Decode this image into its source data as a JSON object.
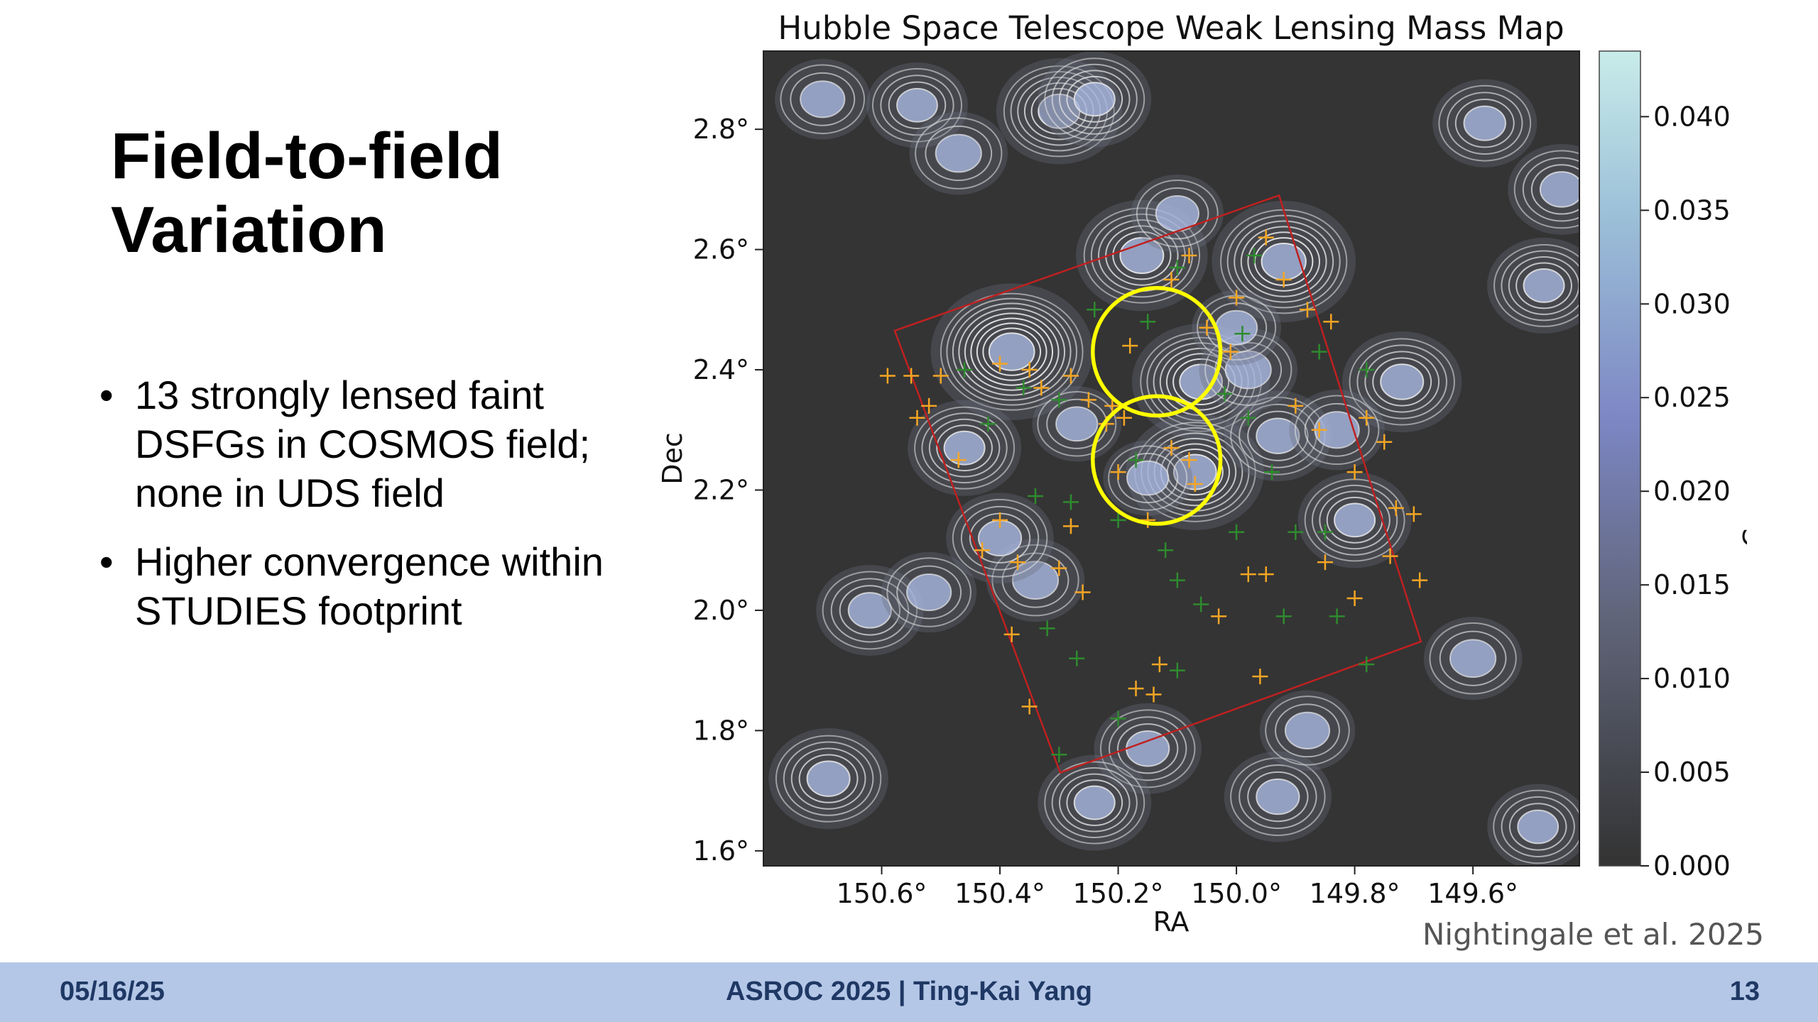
{
  "slide": {
    "title_line1": "Field-to-field",
    "title_line2": "Variation",
    "bullet1_lines": [
      "13 strongly lensed faint",
      "DSFGs in COSMOS field;",
      "none in UDS field"
    ],
    "bullet2_lines": [
      "Higher convergence within",
      "STUDIES footprint"
    ]
  },
  "figure": {
    "credit": "Nightingale et al. 2025"
  },
  "footer": {
    "date": "05/16/25",
    "center": "ASROC 2025 | Ting-Kai Yang",
    "page": "13"
  },
  "colors": {
    "map_background": "#343434",
    "contour": "#e6e6e6",
    "footprint": "#c02020",
    "highlight_circle": "#ffff00",
    "marker_orange": "#f5a623",
    "marker_green": "#2e8b2e",
    "footer_bar": "#b4c7e7",
    "footer_text": "#1f3864"
  },
  "chart_data": {
    "type": "heatmap",
    "title": "Hubble Space Telescope Weak Lensing Mass Map",
    "xlabel": "RA",
    "ylabel": "Dec",
    "colorbar_label": "Convergence",
    "xlim": [
      150.8,
      149.42
    ],
    "ylim": [
      1.575,
      2.93
    ],
    "x_ticks": [
      150.6,
      150.4,
      150.2,
      150.0,
      149.8,
      149.6
    ],
    "x_tick_labels": [
      "150.6°",
      "150.4°",
      "150.2°",
      "150.0°",
      "149.8°",
      "149.6°"
    ],
    "y_ticks": [
      2.8,
      2.6,
      2.4,
      2.2,
      2.0,
      1.8,
      1.6
    ],
    "y_tick_labels": [
      "2.8°",
      "2.6°",
      "2.4°",
      "2.2°",
      "2.0°",
      "1.8°",
      "1.6°"
    ],
    "colorbar_range": [
      0.0,
      0.0435
    ],
    "colorbar_ticks": [
      0.04,
      0.035,
      0.03,
      0.025,
      0.02,
      0.015,
      0.01,
      0.005,
      0.0
    ],
    "colorbar_tick_labels": [
      "0.040",
      "0.035",
      "0.030",
      "0.025",
      "0.020",
      "0.015",
      "0.010",
      "0.005",
      "0.000"
    ],
    "peaks": [
      {
        "ra": 150.38,
        "dec": 2.43,
        "k": 0.034
      },
      {
        "ra": 150.06,
        "dec": 2.38,
        "k": 0.026
      },
      {
        "ra": 150.07,
        "dec": 2.23,
        "k": 0.026
      },
      {
        "ra": 149.92,
        "dec": 2.58,
        "k": 0.028
      },
      {
        "ra": 150.16,
        "dec": 2.59,
        "k": 0.024
      },
      {
        "ra": 149.72,
        "dec": 2.38,
        "k": 0.02
      },
      {
        "ra": 150.3,
        "dec": 2.83,
        "k": 0.022
      },
      {
        "ra": 150.24,
        "dec": 2.85,
        "k": 0.018
      },
      {
        "ra": 150.46,
        "dec": 2.27,
        "k": 0.018
      },
      {
        "ra": 150.62,
        "dec": 2.0,
        "k": 0.016
      },
      {
        "ra": 150.52,
        "dec": 2.03,
        "k": 0.012
      },
      {
        "ra": 149.93,
        "dec": 2.29,
        "k": 0.016
      },
      {
        "ra": 149.83,
        "dec": 2.3,
        "k": 0.012
      },
      {
        "ra": 149.8,
        "dec": 2.15,
        "k": 0.018
      },
      {
        "ra": 149.48,
        "dec": 2.54,
        "k": 0.018
      },
      {
        "ra": 149.45,
        "dec": 2.7,
        "k": 0.016
      },
      {
        "ra": 149.58,
        "dec": 2.81,
        "k": 0.015
      },
      {
        "ra": 150.1,
        "dec": 2.66,
        "k": 0.011
      },
      {
        "ra": 149.98,
        "dec": 2.4,
        "k": 0.013
      },
      {
        "ra": 150.54,
        "dec": 2.84,
        "k": 0.014
      },
      {
        "ra": 150.7,
        "dec": 2.85,
        "k": 0.012
      },
      {
        "ra": 150.34,
        "dec": 2.05,
        "k": 0.013
      },
      {
        "ra": 150.4,
        "dec": 2.12,
        "k": 0.016
      },
      {
        "ra": 150.15,
        "dec": 1.77,
        "k": 0.016
      },
      {
        "ra": 150.24,
        "dec": 1.68,
        "k": 0.018
      },
      {
        "ra": 149.93,
        "dec": 1.69,
        "k": 0.016
      },
      {
        "ra": 150.69,
        "dec": 1.72,
        "k": 0.02
      },
      {
        "ra": 149.6,
        "dec": 1.92,
        "k": 0.013
      },
      {
        "ra": 149.49,
        "dec": 1.64,
        "k": 0.014
      },
      {
        "ra": 150.47,
        "dec": 2.76,
        "k": 0.013
      },
      {
        "ra": 150.15,
        "dec": 2.22,
        "k": 0.01
      },
      {
        "ra": 150.27,
        "dec": 2.31,
        "k": 0.01
      },
      {
        "ra": 149.88,
        "dec": 1.8,
        "k": 0.012
      },
      {
        "ra": 150.0,
        "dec": 2.47,
        "k": 0.01
      }
    ],
    "footprint_polygon": [
      {
        "ra": 150.578,
        "dec": 2.465
      },
      {
        "ra": 149.928,
        "dec": 2.69
      },
      {
        "ra": 149.688,
        "dec": 1.948
      },
      {
        "ra": 150.298,
        "dec": 1.73
      }
    ],
    "highlight_circles": [
      {
        "ra": 150.135,
        "dec": 2.43,
        "r_deg": 0.108
      },
      {
        "ra": 150.135,
        "dec": 2.25,
        "r_deg": 0.108
      }
    ],
    "markers_orange": [
      {
        "ra": 150.5,
        "dec": 2.39
      },
      {
        "ra": 150.4,
        "dec": 2.41
      },
      {
        "ra": 150.35,
        "dec": 2.4
      },
      {
        "ra": 150.33,
        "dec": 2.37
      },
      {
        "ra": 150.28,
        "dec": 2.39
      },
      {
        "ra": 150.25,
        "dec": 2.35
      },
      {
        "ra": 150.21,
        "dec": 2.34
      },
      {
        "ra": 150.18,
        "dec": 2.44
      },
      {
        "ra": 150.05,
        "dec": 2.47
      },
      {
        "ra": 150.01,
        "dec": 2.43
      },
      {
        "ra": 149.95,
        "dec": 2.62
      },
      {
        "ra": 150.08,
        "dec": 2.59
      },
      {
        "ra": 149.92,
        "dec": 2.55
      },
      {
        "ra": 149.84,
        "dec": 2.48
      },
      {
        "ra": 149.9,
        "dec": 2.34
      },
      {
        "ra": 149.78,
        "dec": 2.32
      },
      {
        "ra": 149.75,
        "dec": 2.28
      },
      {
        "ra": 149.8,
        "dec": 2.23
      },
      {
        "ra": 149.73,
        "dec": 2.17
      },
      {
        "ra": 149.7,
        "dec": 2.16
      },
      {
        "ra": 149.74,
        "dec": 2.09
      },
      {
        "ra": 149.69,
        "dec": 2.05
      },
      {
        "ra": 149.8,
        "dec": 2.02
      },
      {
        "ra": 149.85,
        "dec": 2.08
      },
      {
        "ra": 149.95,
        "dec": 2.06
      },
      {
        "ra": 149.98,
        "dec": 2.06
      },
      {
        "ra": 150.03,
        "dec": 1.99
      },
      {
        "ra": 149.96,
        "dec": 1.89
      },
      {
        "ra": 150.11,
        "dec": 2.27
      },
      {
        "ra": 150.08,
        "dec": 2.25
      },
      {
        "ra": 150.07,
        "dec": 2.21
      },
      {
        "ra": 150.15,
        "dec": 2.15
      },
      {
        "ra": 150.28,
        "dec": 2.14
      },
      {
        "ra": 150.3,
        "dec": 2.07
      },
      {
        "ra": 150.26,
        "dec": 2.03
      },
      {
        "ra": 150.37,
        "dec": 2.08
      },
      {
        "ra": 150.4,
        "dec": 2.15
      },
      {
        "ra": 150.43,
        "dec": 2.1
      },
      {
        "ra": 150.38,
        "dec": 1.96
      },
      {
        "ra": 150.13,
        "dec": 1.91
      },
      {
        "ra": 150.14,
        "dec": 1.86
      },
      {
        "ra": 150.17,
        "dec": 1.87
      },
      {
        "ra": 150.35,
        "dec": 1.84
      },
      {
        "ra": 150.47,
        "dec": 2.25
      },
      {
        "ra": 150.54,
        "dec": 2.32
      },
      {
        "ra": 150.59,
        "dec": 2.39
      },
      {
        "ra": 150.55,
        "dec": 2.39
      },
      {
        "ra": 150.52,
        "dec": 2.34
      },
      {
        "ra": 150.11,
        "dec": 2.55
      },
      {
        "ra": 150.0,
        "dec": 2.52
      },
      {
        "ra": 149.88,
        "dec": 2.5
      },
      {
        "ra": 150.22,
        "dec": 2.31
      },
      {
        "ra": 150.19,
        "dec": 2.32
      },
      {
        "ra": 149.86,
        "dec": 2.3
      },
      {
        "ra": 150.2,
        "dec": 2.23
      }
    ],
    "markers_green": [
      {
        "ra": 150.46,
        "dec": 2.4
      },
      {
        "ra": 150.36,
        "dec": 2.37
      },
      {
        "ra": 150.3,
        "dec": 2.35
      },
      {
        "ra": 150.24,
        "dec": 2.5
      },
      {
        "ra": 150.17,
        "dec": 2.25
      },
      {
        "ra": 150.02,
        "dec": 2.36
      },
      {
        "ra": 149.98,
        "dec": 2.32
      },
      {
        "ra": 150.0,
        "dec": 2.13
      },
      {
        "ra": 150.1,
        "dec": 2.05
      },
      {
        "ra": 150.2,
        "dec": 2.15
      },
      {
        "ra": 150.28,
        "dec": 2.18
      },
      {
        "ra": 150.32,
        "dec": 1.97
      },
      {
        "ra": 150.27,
        "dec": 1.92
      },
      {
        "ra": 150.1,
        "dec": 1.9
      },
      {
        "ra": 150.06,
        "dec": 2.01
      },
      {
        "ra": 149.92,
        "dec": 1.99
      },
      {
        "ra": 149.83,
        "dec": 1.99
      },
      {
        "ra": 149.85,
        "dec": 2.13
      },
      {
        "ra": 149.9,
        "dec": 2.13
      },
      {
        "ra": 149.78,
        "dec": 1.91
      },
      {
        "ra": 150.2,
        "dec": 1.82
      },
      {
        "ra": 150.3,
        "dec": 1.76
      },
      {
        "ra": 150.34,
        "dec": 2.19
      },
      {
        "ra": 150.15,
        "dec": 2.48
      },
      {
        "ra": 149.86,
        "dec": 2.43
      },
      {
        "ra": 149.78,
        "dec": 2.4
      },
      {
        "ra": 149.94,
        "dec": 2.23
      },
      {
        "ra": 150.12,
        "dec": 2.1
      },
      {
        "ra": 149.99,
        "dec": 2.46
      },
      {
        "ra": 150.42,
        "dec": 2.31
      },
      {
        "ra": 150.1,
        "dec": 2.57
      },
      {
        "ra": 149.97,
        "dec": 2.59
      }
    ]
  }
}
